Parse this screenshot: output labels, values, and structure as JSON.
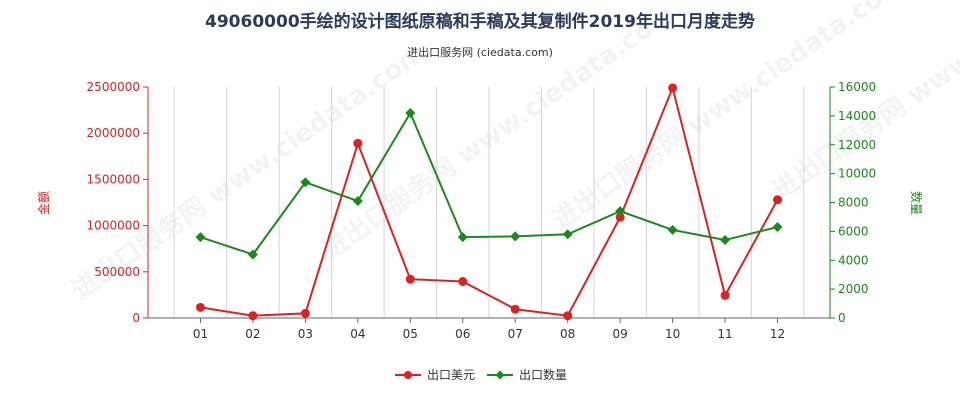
{
  "chart_data": {
    "type": "line",
    "title": "49060000手绘的设计图纸原稿和手稿及其复制件2019年出口月度走势",
    "subtitle": "进出口服务网 (ciedata.com)",
    "watermark": "进出口服务网 www.ciedata.com",
    "categories": [
      "01",
      "02",
      "03",
      "04",
      "05",
      "06",
      "07",
      "08",
      "09",
      "10",
      "11",
      "12"
    ],
    "y_left": {
      "label": "金额",
      "range": [
        0,
        2500000
      ],
      "ticks": [
        0,
        500000,
        1000000,
        1500000,
        2000000,
        2500000
      ],
      "tick_labels": [
        "0",
        "500000",
        "1000000",
        "1500000",
        "2000000",
        "2500000"
      ],
      "color": "#e02020"
    },
    "y_right": {
      "label": "数量",
      "range": [
        0,
        16000
      ],
      "ticks": [
        0,
        2000,
        4000,
        6000,
        8000,
        10000,
        12000,
        14000,
        16000
      ],
      "tick_labels": [
        "0",
        "2000",
        "4000",
        "6000",
        "8000",
        "10000",
        "12000",
        "14000",
        "16000"
      ],
      "color": "#1a8a1a"
    },
    "series": [
      {
        "name": "出口美元",
        "axis": "left",
        "color": "#e02020",
        "values": [
          115000,
          25000,
          50000,
          1890000,
          420000,
          395000,
          95000,
          25000,
          1090000,
          2490000,
          245000,
          1280000
        ]
      },
      {
        "name": "出口数量",
        "axis": "right",
        "color": "#1a8a1a",
        "values": [
          5600,
          4400,
          9400,
          8100,
          14200,
          5600,
          5650,
          5800,
          7400,
          6100,
          5400,
          6300
        ]
      }
    ],
    "grid": "vertical",
    "legend_position": "bottom-center"
  }
}
